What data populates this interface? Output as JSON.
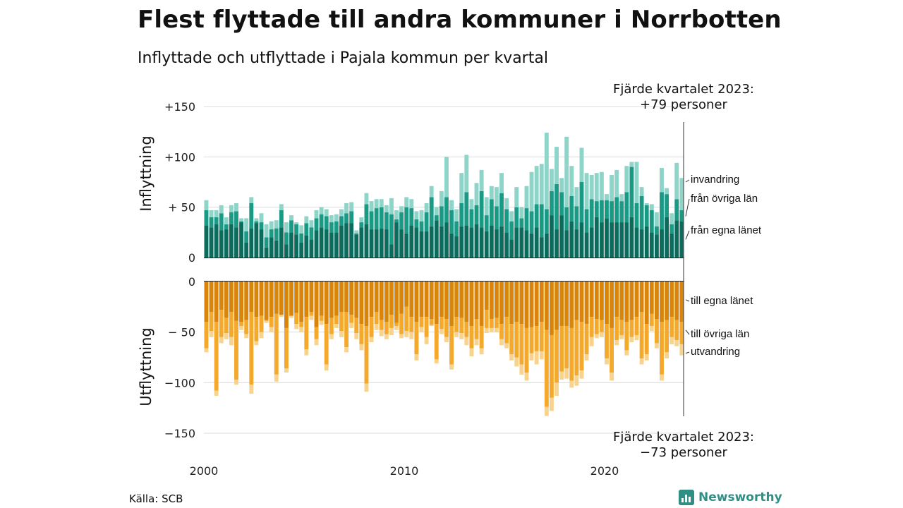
{
  "title": "Flest flyttade till andra kommuner i Norrbotten",
  "subtitle": "Inflyttade och utflyttade i Pajala kommun per kvartal",
  "source": "Källa: SCB",
  "brand": "Newsworthy",
  "colors": {
    "in_local": "#0b6b5c",
    "in_other": "#1a9985",
    "in_immig": "#8ed4c9",
    "out_local": "#d9850c",
    "out_other": "#f4a92c",
    "out_emig": "#f8d38e",
    "brand": "#2f8f84"
  },
  "chart_data": {
    "type": "bar",
    "stacked": true,
    "x_ticks": [
      "2000",
      "2010",
      "2020"
    ],
    "upper": {
      "ylabel": "Inflyttning",
      "ylim": [
        0,
        150
      ],
      "ticks": [
        {
          "value": 150,
          "label": "+150"
        },
        {
          "value": 100,
          "label": "+100"
        },
        {
          "value": 50,
          "label": "+ 50"
        },
        {
          "value": 0,
          "label": "0"
        }
      ],
      "series_labels": [
        "invandring",
        "från övriga län",
        "från egna länet"
      ],
      "annotation_line1": "Fjärde kvartalet 2023:",
      "annotation_line2": "+79 personer",
      "totals": [
        57,
        47,
        47,
        52,
        40,
        52,
        54,
        39,
        39,
        60,
        39,
        44,
        33,
        36,
        37,
        53,
        35,
        42,
        35,
        32,
        41,
        37,
        47,
        50,
        48,
        42,
        43,
        48,
        54,
        55,
        27,
        40,
        64,
        56,
        58,
        58,
        52,
        59,
        47,
        51,
        60,
        58,
        46,
        47,
        54,
        71,
        50,
        66,
        100,
        57,
        48,
        84,
        102,
        58,
        74,
        87,
        60,
        71,
        70,
        84,
        59,
        46,
        70,
        50,
        71,
        85,
        91,
        93,
        124,
        88,
        110,
        79,
        120,
        91,
        70,
        109,
        84,
        82,
        84,
        85,
        63,
        82,
        87,
        63,
        91,
        95,
        95,
        70,
        54,
        53,
        45,
        89,
        69,
        44,
        94,
        79
      ],
      "local": [
        32,
        30,
        33,
        27,
        28,
        33,
        30,
        35,
        15,
        29,
        34,
        28,
        10,
        20,
        17,
        30,
        13,
        25,
        23,
        15,
        22,
        18,
        27,
        30,
        28,
        25,
        25,
        32,
        34,
        34,
        23,
        30,
        33,
        28,
        28,
        29,
        28,
        13,
        35,
        28,
        24,
        32,
        30,
        26,
        26,
        31,
        37,
        31,
        35,
        24,
        21,
        31,
        32,
        30,
        33,
        30,
        26,
        32,
        28,
        31,
        25,
        18,
        30,
        30,
        27,
        24,
        30,
        20,
        24,
        42,
        28,
        42,
        27,
        36,
        28,
        35,
        25,
        30,
        40,
        35,
        39,
        35,
        35,
        35,
        35,
        40,
        30,
        28,
        31,
        25,
        23,
        28,
        40,
        24,
        37,
        36
      ],
      "other": [
        15,
        10,
        7,
        17,
        5,
        12,
        16,
        1,
        11,
        25,
        2,
        7,
        10,
        8,
        12,
        17,
        12,
        12,
        10,
        9,
        12,
        12,
        12,
        13,
        13,
        10,
        11,
        9,
        10,
        12,
        1,
        5,
        20,
        18,
        21,
        21,
        17,
        30,
        3,
        17,
        26,
        17,
        8,
        10,
        19,
        29,
        5,
        20,
        25,
        23,
        15,
        23,
        33,
        18,
        19,
        36,
        16,
        26,
        23,
        33,
        23,
        18,
        20,
        9,
        22,
        22,
        23,
        33,
        24,
        24,
        45,
        23,
        23,
        25,
        23,
        40,
        23,
        28,
        16,
        22,
        18,
        21,
        25,
        21,
        30,
        50,
        24,
        33,
        21,
        22,
        8,
        37,
        23,
        9,
        21,
        11
      ]
    },
    "lower": {
      "ylabel": "Utflyttning",
      "ylim": [
        -150,
        0
      ],
      "ticks": [
        {
          "value": 0,
          "label": "0"
        },
        {
          "value": -50,
          "label": "− 50"
        },
        {
          "value": -100,
          "label": "−100"
        },
        {
          "value": -150,
          "label": "−150"
        }
      ],
      "series_labels": [
        "till egna länet",
        "till övriga län",
        "utvandring"
      ],
      "annotation_line1": "Fjärde kvartalet 2023:",
      "annotation_line2": "−73 personer",
      "totals": [
        70,
        55,
        113,
        61,
        57,
        63,
        102,
        48,
        56,
        111,
        63,
        56,
        41,
        50,
        99,
        35,
        90,
        36,
        47,
        50,
        73,
        38,
        63,
        43,
        88,
        57,
        46,
        55,
        70,
        46,
        57,
        68,
        109,
        60,
        48,
        54,
        57,
        53,
        48,
        56,
        55,
        57,
        78,
        50,
        62,
        44,
        81,
        52,
        60,
        87,
        55,
        57,
        63,
        74,
        63,
        72,
        51,
        50,
        50,
        63,
        66,
        78,
        84,
        92,
        98,
        78,
        82,
        77,
        133,
        128,
        113,
        97,
        96,
        105,
        103,
        96,
        78,
        64,
        56,
        55,
        82,
        98,
        63,
        57,
        73,
        60,
        58,
        82,
        78,
        49,
        66,
        98,
        76,
        62,
        64,
        73
      ],
      "local": [
        40,
        30,
        40,
        28,
        36,
        30,
        39,
        40,
        38,
        30,
        35,
        34,
        38,
        35,
        32,
        33,
        46,
        34,
        31,
        40,
        35,
        30,
        45,
        34,
        42,
        36,
        34,
        30,
        30,
        33,
        36,
        42,
        44,
        35,
        30,
        38,
        40,
        33,
        41,
        32,
        25,
        35,
        40,
        35,
        35,
        37,
        42,
        35,
        37,
        44,
        35,
        36,
        40,
        44,
        37,
        44,
        28,
        37,
        36,
        42,
        35,
        42,
        40,
        42,
        46,
        45,
        44,
        40,
        48,
        53,
        48,
        44,
        44,
        46,
        38,
        40,
        42,
        35,
        37,
        38,
        42,
        46,
        35,
        38,
        40,
        38,
        35,
        30,
        42,
        32,
        37,
        40,
        38,
        35,
        38,
        40
      ],
      "other": [
        26,
        19,
        68,
        27,
        15,
        25,
        58,
        4,
        14,
        72,
        24,
        16,
        1,
        10,
        60,
        0,
        40,
        0,
        11,
        5,
        32,
        4,
        12,
        5,
        40,
        16,
        8,
        19,
        35,
        8,
        15,
        20,
        57,
        20,
        12,
        10,
        12,
        13,
        3,
        20,
        24,
        15,
        32,
        10,
        20,
        6,
        35,
        12,
        18,
        38,
        15,
        15,
        15,
        22,
        20,
        22,
        18,
        9,
        10,
        15,
        26,
        30,
        35,
        40,
        44,
        26,
        25,
        29,
        76,
        62,
        52,
        45,
        42,
        52,
        55,
        48,
        30,
        20,
        15,
        12,
        34,
        44,
        23,
        15,
        28,
        17,
        18,
        46,
        30,
        12,
        24,
        52,
        32,
        20,
        20,
        22
      ]
    }
  }
}
